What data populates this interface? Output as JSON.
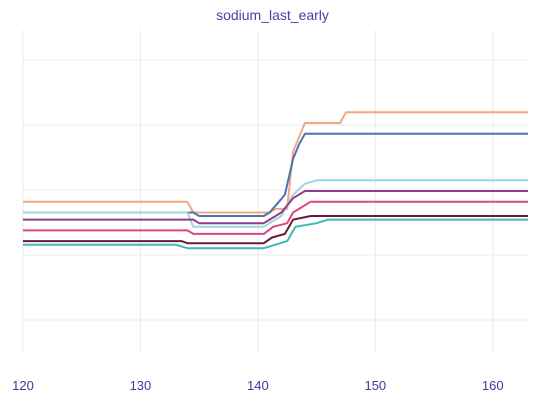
{
  "chart_data": {
    "type": "line",
    "title": "sodium_last_early",
    "xlabel": "",
    "ylabel": "",
    "xlim": [
      120,
      163
    ],
    "ylim": [
      0,
      1
    ],
    "x_ticks": [
      120,
      130,
      140,
      150,
      160
    ],
    "y_ticks_shown": false,
    "grid": true,
    "legend": "none",
    "series": [
      {
        "color": "#f4a582",
        "points": [
          [
            120,
            0.61
          ],
          [
            134,
            0.61
          ],
          [
            134.5,
            0.595
          ],
          [
            141,
            0.595
          ],
          [
            141.5,
            0.6
          ],
          [
            142.5,
            0.6
          ],
          [
            143,
            0.68
          ],
          [
            143.5,
            0.7
          ],
          [
            144,
            0.72
          ],
          [
            147,
            0.72
          ],
          [
            147.5,
            0.735
          ],
          [
            163,
            0.735
          ]
        ]
      },
      {
        "color": "#4c72b0",
        "points": [
          [
            120,
            0.595
          ],
          [
            134.5,
            0.595
          ],
          [
            135,
            0.59
          ],
          [
            140.5,
            0.59
          ],
          [
            141,
            0.595
          ],
          [
            141.8,
            0.61
          ],
          [
            142.3,
            0.62
          ],
          [
            143,
            0.67
          ],
          [
            143.5,
            0.69
          ],
          [
            144,
            0.705
          ],
          [
            163,
            0.705
          ]
        ]
      },
      {
        "color": "#9ed8d8",
        "points": [
          [
            120,
            0.595
          ],
          [
            134,
            0.595
          ],
          [
            134.5,
            0.575
          ],
          [
            140.5,
            0.575
          ],
          [
            141,
            0.58
          ],
          [
            142,
            0.59
          ],
          [
            143,
            0.62
          ],
          [
            144,
            0.635
          ],
          [
            145,
            0.64
          ],
          [
            163,
            0.64
          ]
        ]
      },
      {
        "color": "#8e3c8e",
        "points": [
          [
            120,
            0.585
          ],
          [
            134.5,
            0.585
          ],
          [
            135,
            0.58
          ],
          [
            140.5,
            0.58
          ],
          [
            141,
            0.585
          ],
          [
            142,
            0.595
          ],
          [
            143,
            0.615
          ],
          [
            144,
            0.625
          ],
          [
            163,
            0.625
          ]
        ]
      },
      {
        "color": "#e0457b",
        "points": [
          [
            120,
            0.57
          ],
          [
            134,
            0.57
          ],
          [
            134.5,
            0.565
          ],
          [
            140.5,
            0.565
          ],
          [
            141.3,
            0.575
          ],
          [
            142.5,
            0.58
          ],
          [
            143,
            0.595
          ],
          [
            144.5,
            0.61
          ],
          [
            163,
            0.61
          ]
        ]
      },
      {
        "color": "#6a1b3d",
        "points": [
          [
            120,
            0.555
          ],
          [
            133.5,
            0.555
          ],
          [
            134,
            0.552
          ],
          [
            140.5,
            0.552
          ],
          [
            141.2,
            0.56
          ],
          [
            142.3,
            0.565
          ],
          [
            143,
            0.585
          ],
          [
            144.5,
            0.59
          ],
          [
            163,
            0.59
          ]
        ]
      },
      {
        "color": "#3fb8b8",
        "points": [
          [
            120,
            0.55
          ],
          [
            133,
            0.55
          ],
          [
            134,
            0.545
          ],
          [
            140.5,
            0.545
          ],
          [
            141.5,
            0.55
          ],
          [
            142.5,
            0.555
          ],
          [
            143.2,
            0.575
          ],
          [
            145,
            0.58
          ],
          [
            146,
            0.585
          ],
          [
            163,
            0.585
          ]
        ]
      }
    ]
  }
}
